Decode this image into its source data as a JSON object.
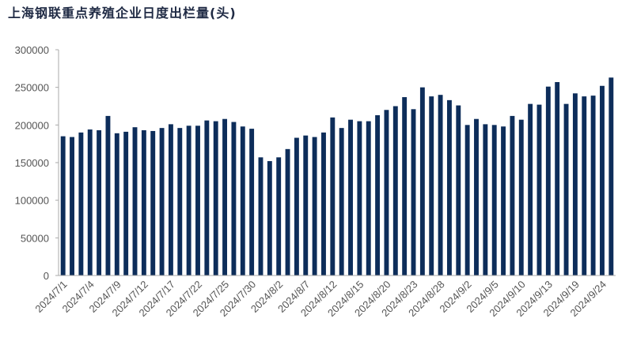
{
  "chart_data": {
    "type": "bar",
    "title": "上海钢联重点养殖企业日度出栏量(头)",
    "xlabel": "",
    "ylabel": "",
    "ylim": [
      0,
      300000
    ],
    "yticks": [
      0,
      50000,
      100000,
      150000,
      200000,
      250000,
      300000
    ],
    "grid": false,
    "bar_color": "#0d2d5a",
    "tick_labels": [
      "2024/7/1",
      "2024/7/4",
      "2024/7/9",
      "2024/7/12",
      "2024/7/17",
      "2024/7/22",
      "2024/7/25",
      "2024/7/30",
      "2024/8/2",
      "2024/8/7",
      "2024/8/12",
      "2024/8/15",
      "2024/8/20",
      "2024/8/23",
      "2024/8/28",
      "2024/9/2",
      "2024/9/5",
      "2024/9/10",
      "2024/9/13",
      "2024/9/19",
      "2024/9/24"
    ],
    "tick_positions": [
      0,
      3,
      6,
      9,
      12,
      15,
      18,
      21,
      24,
      27,
      30,
      33,
      36,
      39,
      42,
      45,
      48,
      51,
      54,
      57,
      60
    ],
    "values": [
      185000,
      184000,
      190000,
      194000,
      193000,
      212000,
      189000,
      191000,
      197000,
      193000,
      192000,
      196000,
      201000,
      196000,
      199000,
      199000,
      206000,
      205000,
      208000,
      204000,
      198000,
      195000,
      157000,
      152000,
      157000,
      168000,
      183000,
      186000,
      184000,
      190000,
      210000,
      196000,
      207000,
      205000,
      205000,
      213000,
      220000,
      225000,
      237000,
      221000,
      250000,
      238000,
      240000,
      233000,
      226000,
      200000,
      208000,
      201000,
      200000,
      198000,
      212000,
      207000,
      228000,
      227000,
      251000,
      257000,
      228000,
      242000,
      238000,
      239000,
      252000,
      263000
    ]
  }
}
